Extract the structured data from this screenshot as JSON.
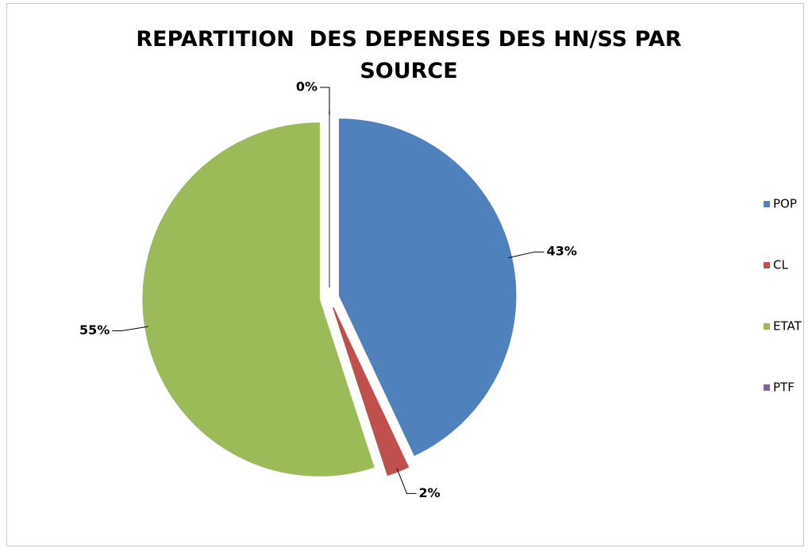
{
  "chart_data": {
    "type": "pie",
    "title": "REPARTITION  DES DEPENSES DES HN/SS PAR SOURCE",
    "categories": [
      "POP",
      "CL",
      "ETAT",
      "PTF"
    ],
    "values": [
      43,
      2,
      55,
      0
    ],
    "value_labels": [
      "43%",
      "2%",
      "55%",
      "0%"
    ],
    "colors": [
      "#4f81bd",
      "#c0504d",
      "#9bbb59",
      "#8064a2"
    ],
    "legend": "right"
  }
}
